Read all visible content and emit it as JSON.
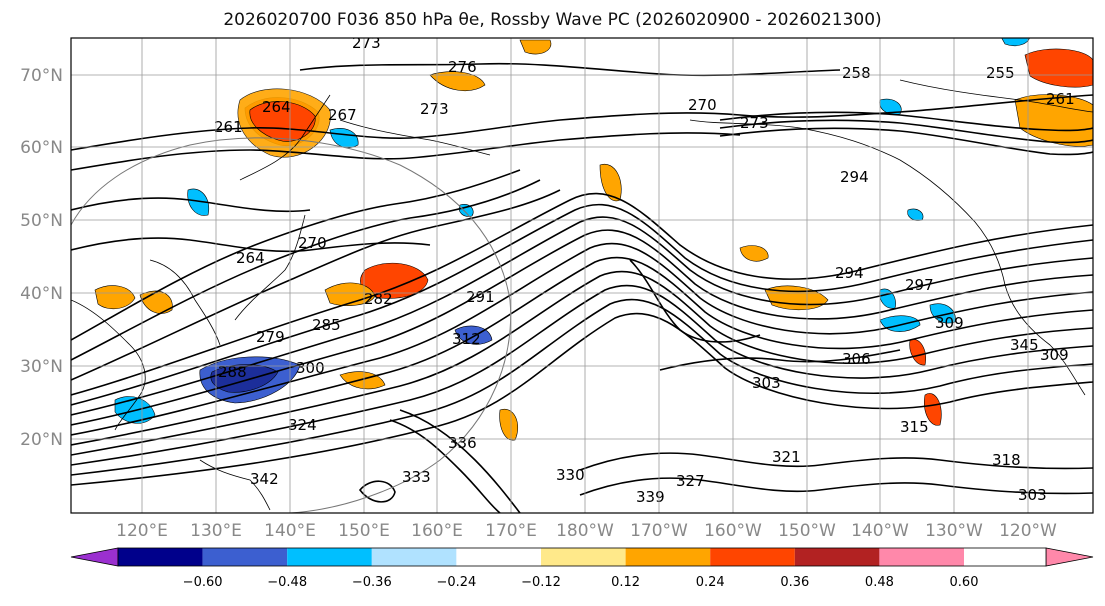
{
  "title": "2026020700 F036 850 hPa θe, Rossby Wave PC (2026020900 - 2026021300)",
  "map": {
    "lat_labels": [
      "70°N",
      "60°N",
      "50°N",
      "40°N",
      "30°N",
      "20°N"
    ],
    "lon_labels": [
      "120°E",
      "130°E",
      "140°E",
      "150°E",
      "160°E",
      "170°E",
      "180°W",
      "170°W",
      "160°W",
      "150°W",
      "140°W",
      "130°W",
      "120°W"
    ],
    "contour_labels": [
      "273",
      "276",
      "261",
      "264",
      "267",
      "273",
      "270",
      "273",
      "258",
      "255",
      "261",
      "294",
      "264",
      "270",
      "282",
      "291",
      "294",
      "297",
      "285",
      "279",
      "288",
      "300",
      "303",
      "306",
      "309",
      "312",
      "315",
      "318",
      "321",
      "324",
      "327",
      "330",
      "333",
      "336",
      "339",
      "342",
      "345",
      "309",
      "303"
    ]
  },
  "colorbar": {
    "tick_labels": [
      "−0.60",
      "−0.48",
      "−0.36",
      "−0.24",
      "−0.12",
      "0.12",
      "0.24",
      "0.36",
      "0.48",
      "0.60"
    ],
    "colors": [
      "#9b30d0",
      "#00008b",
      "#3c5fd0",
      "#00bfff",
      "#b0e2ff",
      "#ffffff",
      "#ffe98a",
      "#ffa500",
      "#ff4500",
      "#b22222",
      "#ff88aa"
    ]
  }
}
